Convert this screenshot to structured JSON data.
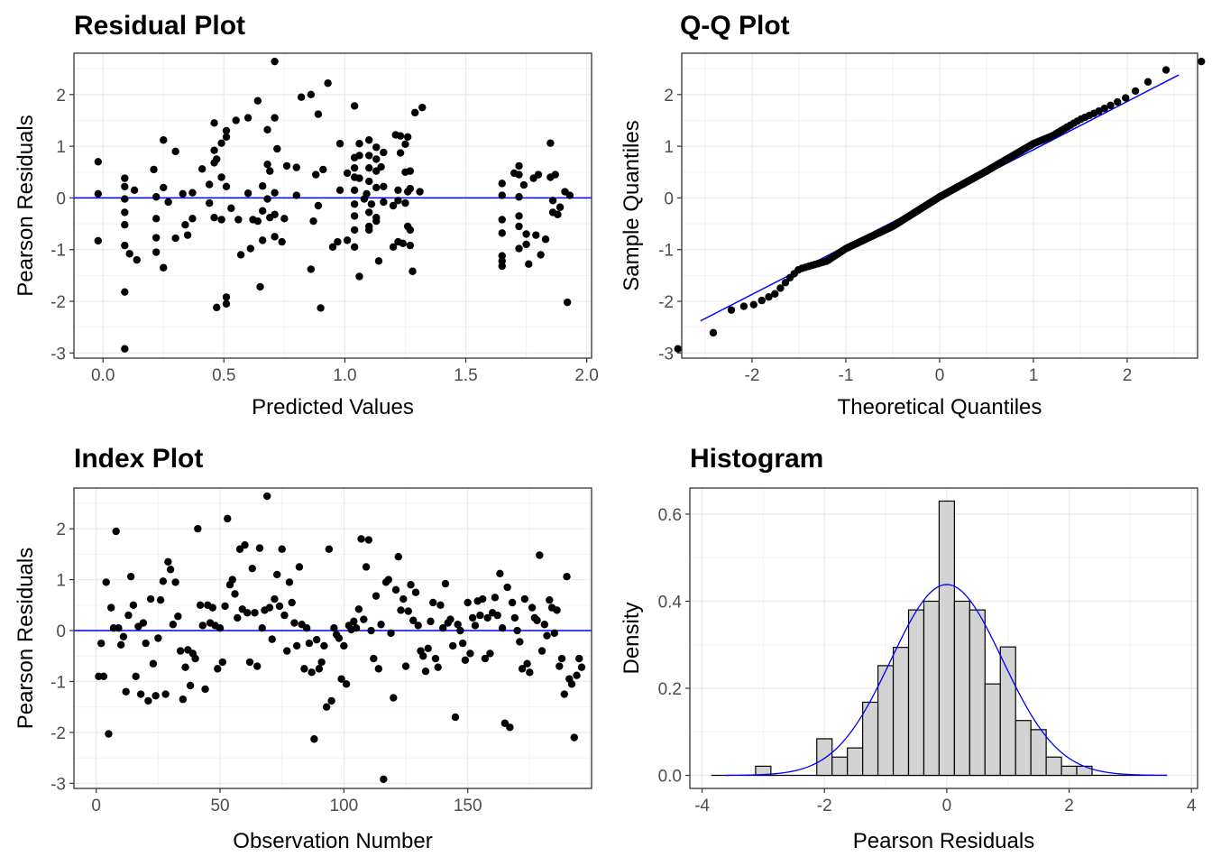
{
  "chart_data": [
    {
      "type": "scatter",
      "title": "Residual Plot",
      "xlabel": "Predicted Values",
      "ylabel": "Pearson Residuals",
      "xlim": [
        -0.12,
        2.02
      ],
      "ylim": [
        -3.1,
        2.8
      ],
      "xticks": [
        0,
        0.5,
        1,
        1.5,
        2
      ],
      "xtick_labels": [
        "0.0",
        "0.5",
        "1.0",
        "1.5",
        "2.0"
      ],
      "yticks": [
        -3,
        -2,
        -1,
        0,
        1,
        2
      ],
      "ytick_labels": [
        "-3",
        "-2",
        "-1",
        "0",
        "1",
        "2"
      ],
      "grid": true,
      "hline": {
        "y": 0,
        "color": "#0000ff"
      },
      "point_color": "#000000",
      "points": [
        [
          -0.02,
          0.7
        ],
        [
          -0.02,
          0.08
        ],
        [
          -0.02,
          -0.83
        ],
        [
          0.09,
          0.38
        ],
        [
          0.09,
          0.22
        ],
        [
          0.09,
          -0.02
        ],
        [
          0.09,
          -0.28
        ],
        [
          0.09,
          -0.52
        ],
        [
          0.09,
          -0.92
        ],
        [
          0.09,
          -1.82
        ],
        [
          0.09,
          -2.92
        ],
        [
          0.11,
          -1.08
        ],
        [
          0.13,
          0.15
        ],
        [
          0.14,
          -1.2
        ],
        [
          0.21,
          0.55
        ],
        [
          0.22,
          0.02
        ],
        [
          0.22,
          -0.4
        ],
        [
          0.22,
          -0.77
        ],
        [
          0.22,
          -1.05
        ],
        [
          0.25,
          1.12
        ],
        [
          0.25,
          0.2
        ],
        [
          0.25,
          -1.35
        ],
        [
          0.27,
          -0.08
        ],
        [
          0.3,
          0.9
        ],
        [
          0.3,
          -0.78
        ],
        [
          0.33,
          0.08
        ],
        [
          0.34,
          -0.52
        ],
        [
          0.35,
          -0.72
        ],
        [
          0.37,
          0.1
        ],
        [
          0.37,
          -0.4
        ],
        [
          0.41,
          0.56
        ],
        [
          0.44,
          0.26
        ],
        [
          0.44,
          -0.1
        ],
        [
          0.46,
          1.45
        ],
        [
          0.46,
          0.92
        ],
        [
          0.46,
          0.68
        ],
        [
          0.46,
          -0.38
        ],
        [
          0.47,
          0.75
        ],
        [
          0.47,
          -2.12
        ],
        [
          0.49,
          1.06
        ],
        [
          0.49,
          0.4
        ],
        [
          0.49,
          -0.42
        ],
        [
          0.51,
          1.3
        ],
        [
          0.51,
          1.18
        ],
        [
          0.51,
          0.22
        ],
        [
          0.51,
          -2.05
        ],
        [
          0.51,
          -1.92
        ],
        [
          0.53,
          -0.2
        ],
        [
          0.55,
          1.5
        ],
        [
          0.56,
          -0.42
        ],
        [
          0.57,
          -1.1
        ],
        [
          0.6,
          0.09
        ],
        [
          0.6,
          1.55
        ],
        [
          0.61,
          -0.98
        ],
        [
          0.62,
          -0.42
        ],
        [
          0.64,
          1.88
        ],
        [
          0.64,
          -0.45
        ],
        [
          0.65,
          -1.72
        ],
        [
          0.66,
          0.23
        ],
        [
          0.66,
          -0.25
        ],
        [
          0.66,
          -0.82
        ],
        [
          0.68,
          1.32
        ],
        [
          0.68,
          0.65
        ],
        [
          0.68,
          -0.02
        ],
        [
          0.69,
          0.52
        ],
        [
          0.69,
          -0.38
        ],
        [
          0.71,
          2.64
        ],
        [
          0.71,
          1.55
        ],
        [
          0.72,
          0.95
        ],
        [
          0.71,
          -0.32
        ],
        [
          0.71,
          -0.75
        ],
        [
          0.71,
          0.1
        ],
        [
          0.74,
          -0.85
        ],
        [
          0.75,
          -0.4
        ],
        [
          0.76,
          0.62
        ],
        [
          0.8,
          0.59
        ],
        [
          0.8,
          0.05
        ],
        [
          0.82,
          1.95
        ],
        [
          0.86,
          2.0
        ],
        [
          0.86,
          -1.38
        ],
        [
          0.87,
          -0.45
        ],
        [
          0.88,
          0.45
        ],
        [
          0.89,
          1.62
        ],
        [
          0.89,
          -0.15
        ],
        [
          0.9,
          -2.13
        ],
        [
          0.91,
          0.55
        ],
        [
          0.93,
          2.22
        ],
        [
          0.95,
          -0.95
        ],
        [
          0.97,
          -0.85
        ],
        [
          0.98,
          1.05
        ],
        [
          0.98,
          0.15
        ],
        [
          1.01,
          0.48
        ],
        [
          1.01,
          -0.82
        ],
        [
          1.04,
          1.78
        ],
        [
          1.04,
          0.78
        ],
        [
          1.04,
          0.58
        ],
        [
          1.04,
          0.4
        ],
        [
          1.04,
          0.15
        ],
        [
          1.04,
          -0.12
        ],
        [
          1.04,
          -0.35
        ],
        [
          1.04,
          -0.62
        ],
        [
          1.04,
          -0.95
        ],
        [
          1.06,
          1.05
        ],
        [
          1.06,
          0.82
        ],
        [
          1.06,
          0.38
        ],
        [
          1.06,
          -1.52
        ],
        [
          1.08,
          -0.02
        ],
        [
          1.09,
          0.08
        ],
        [
          1.1,
          1.12
        ],
        [
          1.1,
          0.82
        ],
        [
          1.1,
          0.58
        ],
        [
          1.1,
          0.32
        ],
        [
          1.1,
          -0.28
        ],
        [
          1.1,
          -0.55
        ],
        [
          1.1,
          -0.62
        ],
        [
          1.11,
          -0.12
        ],
        [
          1.13,
          0.98
        ],
        [
          1.13,
          0.75
        ],
        [
          1.13,
          0.52
        ],
        [
          1.13,
          0.2
        ],
        [
          1.13,
          -0.38
        ],
        [
          1.13,
          -0.45
        ],
        [
          1.14,
          -1.22
        ],
        [
          1.15,
          0.6
        ],
        [
          1.16,
          0.88
        ],
        [
          1.16,
          0.22
        ],
        [
          1.16,
          -0.08
        ],
        [
          1.2,
          -0.15
        ],
        [
          1.2,
          -0.95
        ],
        [
          1.21,
          1.22
        ],
        [
          1.22,
          0.15
        ],
        [
          1.22,
          -0.05
        ],
        [
          1.22,
          -0.85
        ],
        [
          1.23,
          1.2
        ],
        [
          1.23,
          0.87
        ],
        [
          1.24,
          -0.88
        ],
        [
          1.25,
          1.04
        ],
        [
          1.25,
          0.5
        ],
        [
          1.25,
          -0.1
        ],
        [
          1.26,
          1.18
        ],
        [
          1.26,
          0.12
        ],
        [
          1.26,
          -0.55
        ],
        [
          1.27,
          0.52
        ],
        [
          1.27,
          0.18
        ],
        [
          1.27,
          -0.62
        ],
        [
          1.27,
          -0.92
        ],
        [
          1.28,
          -1.42
        ],
        [
          1.29,
          1.65
        ],
        [
          1.32,
          1.75
        ],
        [
          1.31,
          0.12
        ],
        [
          1.65,
          0.28
        ],
        [
          1.65,
          0.05
        ],
        [
          1.65,
          -0.42
        ],
        [
          1.65,
          -0.68
        ],
        [
          1.65,
          -1.12
        ],
        [
          1.65,
          -1.22
        ],
        [
          1.65,
          -1.32
        ],
        [
          1.7,
          0.48
        ],
        [
          1.72,
          0.62
        ],
        [
          1.72,
          0.45
        ],
        [
          1.72,
          0.02
        ],
        [
          1.72,
          -0.35
        ],
        [
          1.72,
          -0.55
        ],
        [
          1.72,
          -0.98
        ],
        [
          1.74,
          0.25
        ],
        [
          1.75,
          -0.9
        ],
        [
          1.75,
          -0.7
        ],
        [
          1.76,
          -1.28
        ],
        [
          1.78,
          0.38
        ],
        [
          1.79,
          -0.72
        ],
        [
          1.8,
          0.45
        ],
        [
          1.81,
          -1.1
        ],
        [
          1.83,
          -0.8
        ],
        [
          1.85,
          1.06
        ],
        [
          1.85,
          0.4
        ],
        [
          1.86,
          -0.05
        ],
        [
          1.86,
          -0.28
        ],
        [
          1.87,
          0.45
        ],
        [
          1.88,
          -0.32
        ],
        [
          1.89,
          -0.18
        ],
        [
          1.91,
          0.12
        ],
        [
          1.92,
          -2.02
        ],
        [
          1.93,
          0.05
        ]
      ]
    },
    {
      "type": "scatter",
      "title": "Q-Q Plot",
      "xlabel": "Theoretical Quantiles",
      "ylabel": "Sample Quantiles",
      "xlim": [
        -2.75,
        2.75
      ],
      "ylim": [
        -3.1,
        2.8
      ],
      "xticks": [
        -2,
        -1,
        0,
        1,
        2
      ],
      "xtick_labels": [
        "-2",
        "-1",
        "0",
        "1",
        "2"
      ],
      "yticks": [
        -3,
        -2,
        -1,
        0,
        1,
        2
      ],
      "ytick_labels": [
        "-3",
        "-2",
        "-1",
        "0",
        "1",
        "2"
      ],
      "grid": true,
      "reference_line": {
        "x": [
          -2.55,
          2.55
        ],
        "y": [
          -2.38,
          2.38
        ],
        "color": "#0000ff"
      },
      "point_color": "#000000",
      "n_points": 190,
      "quantile_anchors": [
        [
          -2.55,
          -2.92
        ],
        [
          -2.2,
          -2.12
        ],
        [
          -2.0,
          -2.08
        ],
        [
          -1.75,
          -1.85
        ],
        [
          -1.6,
          -1.55
        ],
        [
          -1.5,
          -1.38
        ],
        [
          -1.2,
          -1.22
        ],
        [
          -1.0,
          -0.98
        ],
        [
          -0.5,
          -0.55
        ],
        [
          0.0,
          0.02
        ],
        [
          0.5,
          0.52
        ],
        [
          1.0,
          1.05
        ],
        [
          1.2,
          1.2
        ],
        [
          1.5,
          1.52
        ],
        [
          1.7,
          1.68
        ],
        [
          2.0,
          1.95
        ],
        [
          2.2,
          2.22
        ],
        [
          2.55,
          2.64
        ]
      ]
    },
    {
      "type": "scatter",
      "title": "Index Plot",
      "xlabel": "Observation Number",
      "ylabel": "Pearson Residuals",
      "xlim": [
        -9,
        200
      ],
      "ylim": [
        -3.1,
        2.8
      ],
      "xticks": [
        0,
        50,
        100,
        150
      ],
      "xtick_labels": [
        "0",
        "50",
        "100",
        "150"
      ],
      "yticks": [
        -3,
        -2,
        -1,
        0,
        1,
        2
      ],
      "ytick_labels": [
        "-3",
        "-2",
        "-1",
        "0",
        "1",
        "2"
      ],
      "grid": true,
      "hline": {
        "y": 0,
        "color": "#0000ff"
      },
      "point_color": "#000000",
      "values": [
        -0.9,
        -0.25,
        -0.9,
        0.95,
        -2.03,
        0.45,
        0.05,
        1.95,
        0.05,
        -0.28,
        -0.12,
        -1.2,
        0.3,
        1.06,
        0.5,
        -0.9,
        0.08,
        -1.25,
        0.15,
        -0.25,
        -1.38,
        0.62,
        -0.65,
        -1.28,
        -0.15,
        0.6,
        0.97,
        -1.25,
        1.35,
        1.2,
        0.12,
        0.95,
        0.28,
        -0.4,
        -1.35,
        -0.72,
        -0.38,
        -1.08,
        -0.45,
        -0.55,
        2.0,
        0.5,
        0.1,
        -1.15,
        0.5,
        0.15,
        0.45,
        0.1,
        -0.75,
        0.05,
        -0.62,
        0.48,
        2.2,
        0.9,
        1.0,
        0.72,
        0.25,
        1.6,
        0.42,
        1.68,
        0.35,
        -0.62,
        1.22,
        0.35,
        -0.7,
        1.62,
        0.05,
        0.4,
        2.64,
        0.45,
        -0.17,
        0.62,
        1.1,
        0.48,
        1.6,
        0.3,
        -0.4,
        0.95,
        0.55,
        0.15,
        -0.3,
        1.25,
        0.12,
        -0.75,
        0.05,
        -0.25,
        -0.82,
        -2.13,
        -0.18,
        -0.75,
        -0.62,
        -0.3,
        -1.5,
        1.6,
        -1.38,
        0.05,
        -0.08,
        -0.15,
        -0.95,
        -0.3,
        -1.05,
        0.1,
        0.02,
        0.18,
        0.05,
        0.42,
        1.8,
        0.22,
        1.25,
        1.78,
        0.0,
        -0.55,
        0.68,
        -0.75,
        0.12,
        -2.92,
        0.95,
        1.0,
        -0.05,
        -1.32,
        0.8,
        1.45,
        0.4,
        0.62,
        -0.7,
        0.38,
        0.9,
        0.2,
        0.75,
        0.1,
        -0.4,
        -0.5,
        -0.8,
        -0.35,
        0.18,
        0.55,
        -0.55,
        -0.72,
        0.5,
        0.05,
        0.92,
        0.15,
        0.22,
        -0.3,
        -1.7,
        0.12,
        0.0,
        -0.25,
        -0.58,
        0.55,
        -0.45,
        0.25,
        0.1,
        0.58,
        0.3,
        0.62,
        -0.55,
        0.25,
        -0.45,
        0.35,
        0.65,
        0.3,
        1.12,
        0.05,
        -1.82,
        0.85,
        -1.9,
        0.55,
        0.25,
        0.0,
        -0.22,
        -0.75,
        0.62,
        -0.65,
        -0.82,
        0.45,
        0.25,
        0.2,
        1.48,
        -0.4,
        0.12,
        -0.1,
        0.6,
        0.45,
        -0.05,
        0.4,
        -0.7,
        -0.55,
        -1.25,
        1.06,
        -0.95,
        -1.05,
        -2.1,
        -0.88,
        -0.55,
        -0.72
      ]
    },
    {
      "type": "bar",
      "title": "Histogram",
      "xlabel": "Pearson Residuals",
      "ylabel": "Density",
      "xlim": [
        -4.2,
        4.1
      ],
      "ylim": [
        -0.03,
        0.66
      ],
      "xticks": [
        -4,
        -2,
        0,
        2,
        4
      ],
      "xtick_labels": [
        "-4",
        "-2",
        "0",
        "2",
        "4"
      ],
      "yticks": [
        0.0,
        0.2,
        0.4,
        0.6
      ],
      "ytick_labels": [
        "0.0",
        "0.2",
        "0.4",
        "0.6"
      ],
      "grid": true,
      "bar_fill": "#d3d3d3",
      "bar_edge": "#000000",
      "bin_width": 0.25,
      "bins_start": -3.125,
      "densities": [
        0.021,
        0,
        0,
        0,
        0.084,
        0.042,
        0.063,
        0.168,
        0.252,
        0.294,
        0.38,
        0.4,
        0.63,
        0.4,
        0.38,
        0.21,
        0.295,
        0.126,
        0.105,
        0.042,
        0.021,
        0.021
      ],
      "baseline_range": [
        -3.85,
        3.6
      ],
      "density_curve": {
        "mean": 0.0,
        "sd": 0.91,
        "range": [
          -3.6,
          3.6
        ],
        "color": "#0000ff"
      }
    }
  ]
}
